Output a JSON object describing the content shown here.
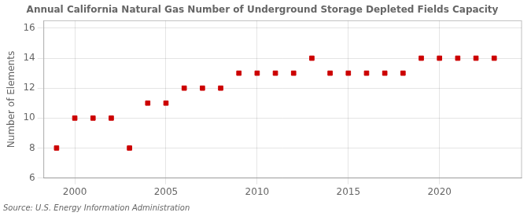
{
  "chart_data": {
    "type": "scatter",
    "title": "Annual California Natural Gas Number of Underground Storage Depleted Fields Capacity",
    "ylabel": "Number of Elements",
    "source": "Source: U.S. Energy Information Administration",
    "x": [
      1999,
      2000,
      2001,
      2002,
      2003,
      2004,
      2005,
      2006,
      2007,
      2008,
      2009,
      2010,
      2011,
      2012,
      2013,
      2014,
      2015,
      2016,
      2017,
      2018,
      2019,
      2020,
      2021,
      2022,
      2023
    ],
    "values": [
      8,
      10,
      10,
      10,
      8,
      11,
      11,
      12,
      12,
      12,
      13,
      13,
      13,
      13,
      14,
      13,
      13,
      13,
      13,
      13,
      14,
      14,
      14,
      14,
      14
    ],
    "color": "#cc0000",
    "marker": "square",
    "xlim": [
      1998.3,
      2024.5
    ],
    "ylim": [
      6,
      16.5
    ],
    "xticks": [
      2000,
      2005,
      2010,
      2015,
      2020
    ],
    "yticks": [
      6,
      8,
      10,
      12,
      14,
      16
    ],
    "grid": true
  }
}
